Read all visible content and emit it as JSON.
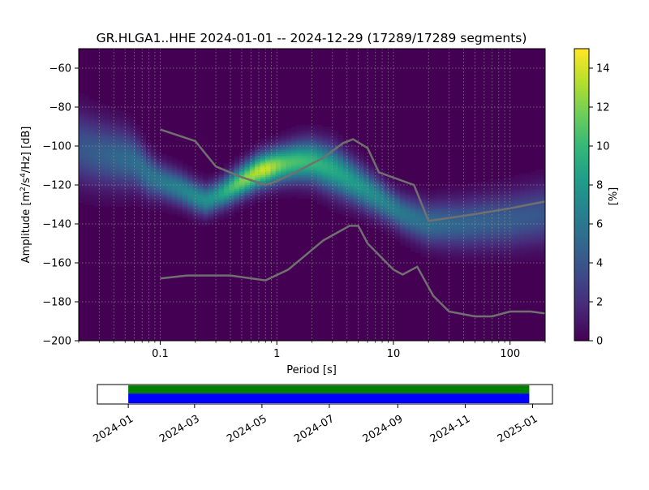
{
  "chart_data": [
    {
      "type": "heatmap",
      "title": "GR.HLGA1..HHE   2024-01-01 -- 2024-12-29  (17289/17289 segments)",
      "xlabel": "Period [s]",
      "ylabel_main": "Amplitude [m",
      "ylabel_sup1": "2",
      "ylabel_mid": "/s",
      "ylabel_sup2": "4",
      "ylabel_end": "/Hz] [dB]",
      "x_scale": "log",
      "xlim": [
        0.02,
        200
      ],
      "ylim": [
        -200,
        -50
      ],
      "x_ticks": [
        {
          "value": 0.1,
          "label": "0.1"
        },
        {
          "value": 1,
          "label": "1"
        },
        {
          "value": 10,
          "label": "10"
        },
        {
          "value": 100,
          "label": "100"
        }
      ],
      "y_ticks": [
        {
          "value": -60,
          "label": "−60"
        },
        {
          "value": -80,
          "label": "−80"
        },
        {
          "value": -100,
          "label": "−100"
        },
        {
          "value": -120,
          "label": "−120"
        },
        {
          "value": -140,
          "label": "−140"
        },
        {
          "value": -160,
          "label": "−160"
        },
        {
          "value": -180,
          "label": "−180"
        },
        {
          "value": -200,
          "label": "−200"
        }
      ],
      "grid": true,
      "colormap": "viridis",
      "background_color": "#440154",
      "colorbar": {
        "label": "[%]",
        "range": [
          0,
          15
        ],
        "ticks": [
          {
            "value": 0,
            "label": "0"
          },
          {
            "value": 2,
            "label": "2"
          },
          {
            "value": 4,
            "label": "4"
          },
          {
            "value": 6,
            "label": "6"
          },
          {
            "value": 8,
            "label": "8"
          },
          {
            "value": 10,
            "label": "10"
          },
          {
            "value": 12,
            "label": "12"
          },
          {
            "value": 14,
            "label": "14"
          }
        ]
      },
      "density_center": [
        [
          0.02,
          -101
        ],
        [
          0.03,
          -104
        ],
        [
          0.045,
          -106
        ],
        [
          0.06,
          -108
        ],
        [
          0.08,
          -115
        ],
        [
          0.1,
          -118
        ],
        [
          0.15,
          -122
        ],
        [
          0.2,
          -126
        ],
        [
          0.25,
          -128
        ],
        [
          0.35,
          -124
        ],
        [
          0.5,
          -118
        ],
        [
          0.7,
          -113
        ],
        [
          1,
          -110
        ],
        [
          1.5,
          -108
        ],
        [
          2,
          -108
        ],
        [
          3,
          -112
        ],
        [
          5,
          -120
        ],
        [
          8,
          -128
        ],
        [
          12,
          -135
        ],
        [
          20,
          -140
        ],
        [
          40,
          -140
        ],
        [
          100,
          -138
        ],
        [
          200,
          -135
        ]
      ],
      "density_halfwidth": [
        [
          0.02,
          12
        ],
        [
          0.05,
          10
        ],
        [
          0.1,
          6
        ],
        [
          0.3,
          5
        ],
        [
          1,
          6
        ],
        [
          3,
          8
        ],
        [
          10,
          6
        ],
        [
          30,
          8
        ],
        [
          200,
          10
        ]
      ],
      "density_peak": [
        [
          0.02,
          4
        ],
        [
          0.1,
          6
        ],
        [
          0.3,
          8
        ],
        [
          0.5,
          12
        ],
        [
          0.8,
          14
        ],
        [
          1.2,
          11
        ],
        [
          2,
          10
        ],
        [
          5,
          8
        ],
        [
          12,
          6
        ],
        [
          30,
          5
        ],
        [
          200,
          4
        ]
      ],
      "series": [
        {
          "color": "#707070",
          "x": [
            0.1,
            0.2,
            0.3,
            0.5,
            0.8,
            1,
            1.5,
            2.5,
            3.7,
            4.5,
            6,
            7.5,
            15,
            20,
            50,
            100,
            200
          ],
          "y": [
            -91.5,
            -97.5,
            -110.5,
            -116,
            -120,
            -118,
            -113,
            -106,
            -98.5,
            -96.5,
            -101,
            -113.5,
            -120,
            -138.5,
            -135,
            -132,
            -128.5
          ]
        },
        {
          "color": "#707070",
          "x": [
            0.1,
            0.17,
            0.4,
            0.8,
            1.25,
            2.5,
            4.2,
            5,
            6,
            10,
            12,
            16,
            22,
            30,
            50,
            70,
            100,
            150,
            200
          ],
          "y": [
            -168,
            -166.5,
            -166.5,
            -169,
            -163.5,
            -148.5,
            -141,
            -141,
            -150,
            -163.5,
            -166,
            -162,
            -177,
            -185,
            -187.5,
            -187.5,
            -185,
            -185,
            -186
          ]
        }
      ]
    },
    {
      "type": "timeline",
      "xlim": [
        "2023-12-04",
        "2025-01-19"
      ],
      "x_ticks": [
        "2024-01",
        "2024-03",
        "2024-05",
        "2024-07",
        "2024-09",
        "2024-11",
        "2025-01"
      ],
      "bars": [
        {
          "color": "#008000",
          "start": "2024-01-01",
          "end": "2024-12-29"
        },
        {
          "color": "#0000ff",
          "start": "2024-01-01",
          "end": "2024-12-29"
        }
      ]
    }
  ]
}
